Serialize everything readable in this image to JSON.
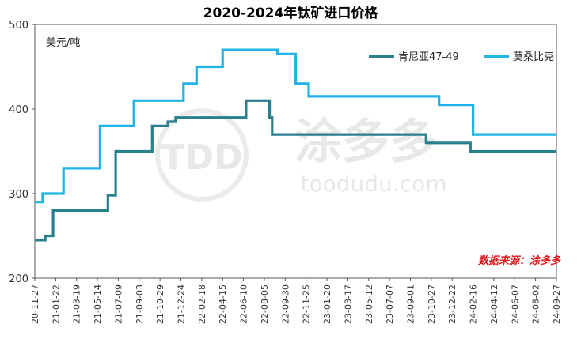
{
  "chart_data": {
    "type": "line",
    "title": "2020-2024年钛矿进口价格",
    "unit_label": "美元/吨",
    "ylim": [
      200,
      500
    ],
    "yticks": [
      200,
      300,
      400,
      500
    ],
    "x_range": [
      "2020-11-27",
      "2024-09-27"
    ],
    "x_tick_labels": [
      "20-11-27",
      "21-01-22",
      "21-03-19",
      "21-05-14",
      "21-07-09",
      "21-09-03",
      "21-10-29",
      "21-12-24",
      "22-02-18",
      "22-04-15",
      "22-06-10",
      "22-08-05",
      "22-09-30",
      "22-11-25",
      "23-01-20",
      "23-03-17",
      "23-05-12",
      "23-07-07",
      "23-09-01",
      "23-10-27",
      "23-12-22",
      "24-02-16",
      "24-04-12",
      "24-06-07",
      "24-08-02",
      "24-09-27"
    ],
    "grid": false,
    "legend_position": "top-right",
    "source": "数据来源：涂多多",
    "watermark": {
      "brand": "涂多多",
      "url": "toodudu.com",
      "logo_text": "TDD"
    },
    "series": [
      {
        "name": "肯尼亚47-49",
        "color": "#2a7f8e",
        "points": [
          [
            "2020-11-27",
            245
          ],
          [
            "2020-12-25",
            245
          ],
          [
            "2020-12-25",
            250
          ],
          [
            "2021-01-15",
            250
          ],
          [
            "2021-01-15",
            280
          ],
          [
            "2021-06-11",
            280
          ],
          [
            "2021-06-11",
            298
          ],
          [
            "2021-07-02",
            298
          ],
          [
            "2021-07-02",
            350
          ],
          [
            "2021-10-08",
            350
          ],
          [
            "2021-10-08",
            380
          ],
          [
            "2021-11-19",
            380
          ],
          [
            "2021-11-19",
            385
          ],
          [
            "2021-12-10",
            385
          ],
          [
            "2021-12-10",
            390
          ],
          [
            "2022-06-17",
            390
          ],
          [
            "2022-06-17",
            410
          ],
          [
            "2022-08-19",
            410
          ],
          [
            "2022-08-19",
            390
          ],
          [
            "2022-08-26",
            390
          ],
          [
            "2022-08-26",
            370
          ],
          [
            "2023-10-13",
            370
          ],
          [
            "2023-10-13",
            360
          ],
          [
            "2024-02-09",
            360
          ],
          [
            "2024-02-09",
            350
          ],
          [
            "2024-09-27",
            350
          ]
        ]
      },
      {
        "name": "莫桑比克",
        "color": "#1fb3e6",
        "points": [
          [
            "2020-11-27",
            290
          ],
          [
            "2020-12-18",
            290
          ],
          [
            "2020-12-18",
            300
          ],
          [
            "2021-02-12",
            300
          ],
          [
            "2021-02-12",
            330
          ],
          [
            "2021-05-21",
            330
          ],
          [
            "2021-05-21",
            380
          ],
          [
            "2021-08-20",
            380
          ],
          [
            "2021-08-20",
            410
          ],
          [
            "2021-12-31",
            410
          ],
          [
            "2021-12-31",
            430
          ],
          [
            "2022-02-04",
            430
          ],
          [
            "2022-02-04",
            450
          ],
          [
            "2022-04-15",
            450
          ],
          [
            "2022-04-15",
            470
          ],
          [
            "2022-09-09",
            470
          ],
          [
            "2022-09-09",
            465
          ],
          [
            "2022-10-28",
            465
          ],
          [
            "2022-10-28",
            430
          ],
          [
            "2022-12-02",
            430
          ],
          [
            "2022-12-02",
            415
          ],
          [
            "2023-11-17",
            415
          ],
          [
            "2023-11-17",
            405
          ],
          [
            "2024-02-16",
            405
          ],
          [
            "2024-02-16",
            370
          ],
          [
            "2024-09-27",
            370
          ]
        ]
      }
    ]
  }
}
